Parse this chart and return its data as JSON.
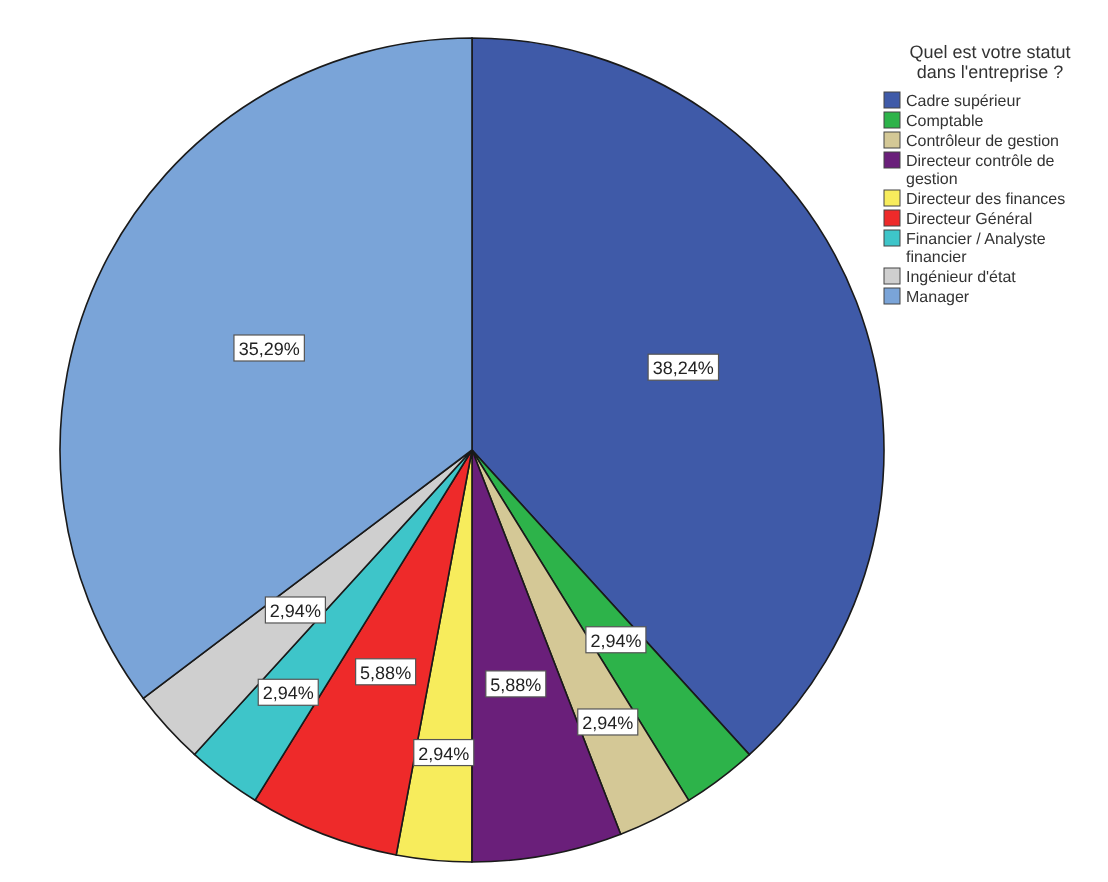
{
  "chart_data": {
    "type": "pie",
    "legend_title": "Quel est votre statut dans l'entreprise ?",
    "legend": "top right",
    "categories": [
      "Cadre supérieur",
      "Comptable",
      "Contrôleur de gestion",
      "Directeur contrôle de gestion",
      "Directeur des finances",
      "Directeur Général",
      "Financier / Analyste financier",
      "Ingénieur d'état",
      "Manager"
    ],
    "values": [
      38.24,
      2.94,
      2.94,
      5.88,
      2.94,
      5.88,
      2.94,
      2.94,
      35.29
    ],
    "colors": [
      "#3f5aa8",
      "#2db34a",
      "#d4c896",
      "#6a1f7a",
      "#f7ec5c",
      "#ee2a2a",
      "#3ec5c9",
      "#cfcfcf",
      "#7aa4d8"
    ],
    "value_labels": [
      "38,24%",
      "2,94%",
      "2,94%",
      "5,88%",
      "2,94%",
      "5,88%",
      "2,94%",
      "2,94%",
      "35,29%"
    ]
  }
}
